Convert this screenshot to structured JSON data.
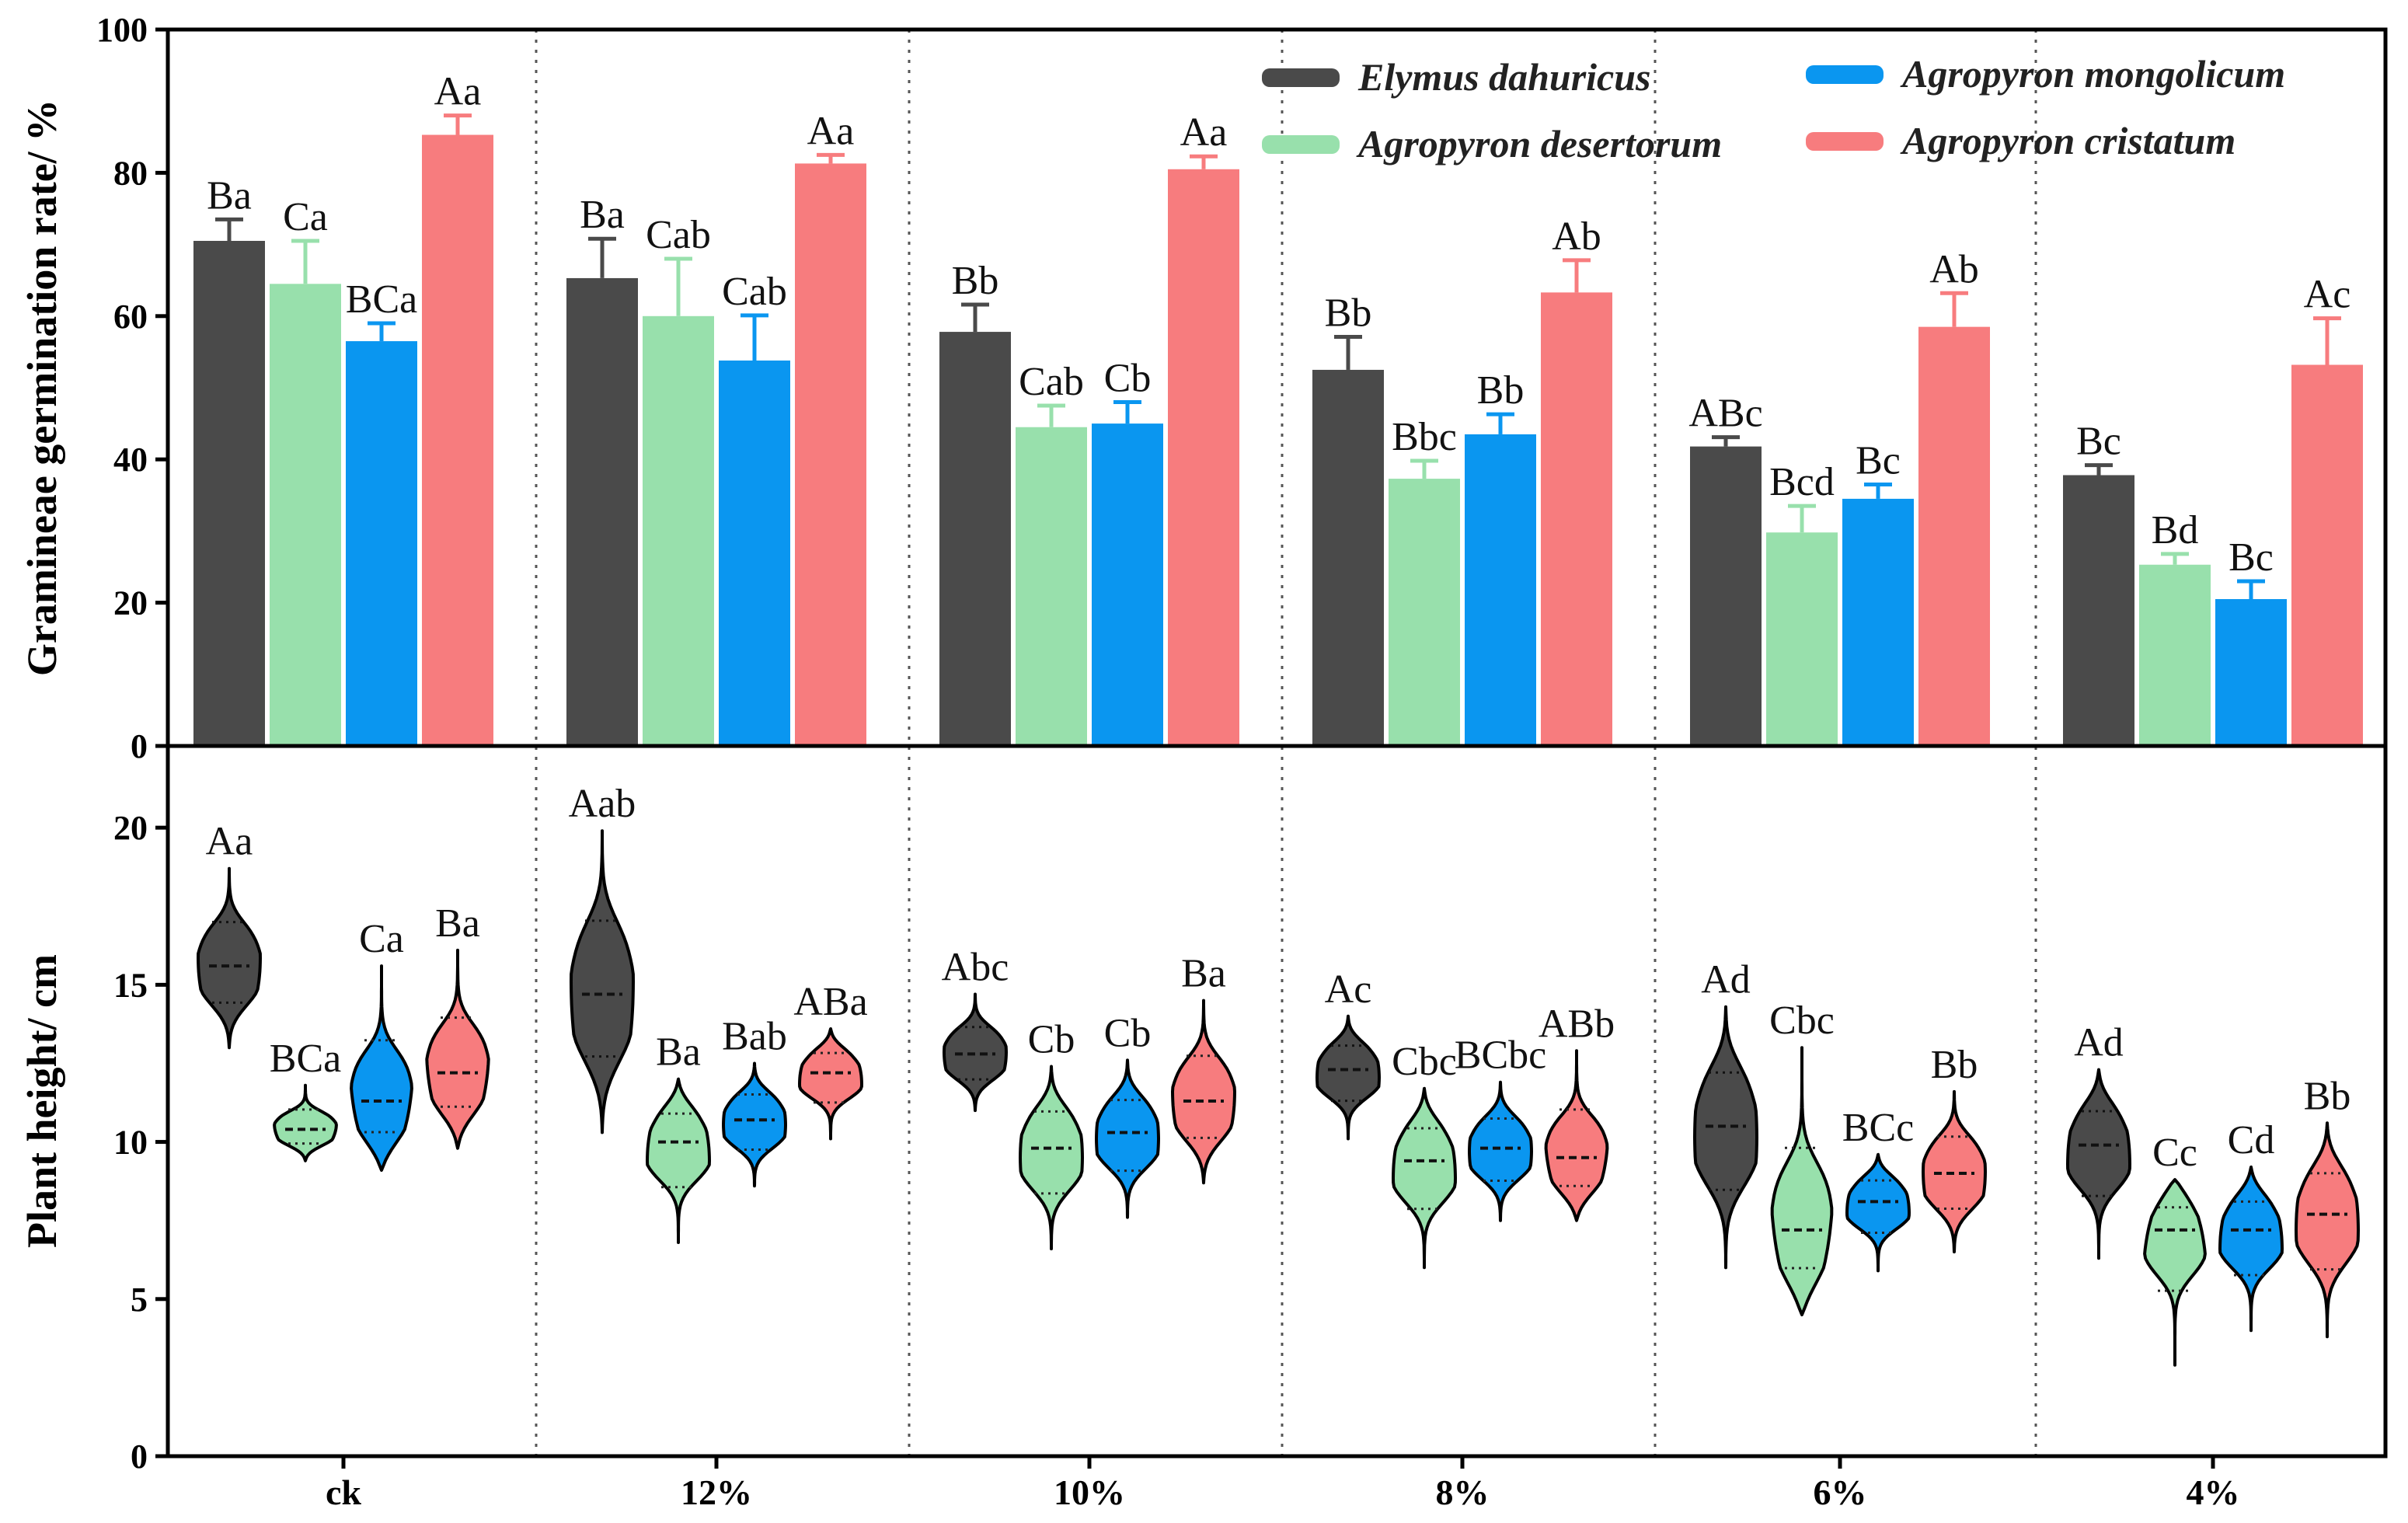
{
  "chart_data": [
    {
      "type": "bar",
      "ylabel": "Gramineae germination rate/ %",
      "ylim": [
        0,
        100
      ],
      "yticks": [
        0,
        20,
        40,
        60,
        80,
        100
      ],
      "categories": [
        "ck",
        "12%",
        "10%",
        "8%",
        "6%",
        "4%"
      ],
      "legend_position": "top-right",
      "series": [
        {
          "name": "Elymus dahuricus",
          "color": "#4a4a4a",
          "values": [
            70.5,
            65.3,
            57.8,
            52.5,
            41.8,
            37.8
          ],
          "errors": [
            3.0,
            5.5,
            3.8,
            4.6,
            1.3,
            1.4
          ],
          "letters": [
            "Ba",
            "Ba",
            "Bb",
            "Bb",
            "ABc",
            "Bc"
          ]
        },
        {
          "name": "Agropyron desertorum",
          "color": "#98e0ac",
          "values": [
            64.5,
            60.0,
            44.5,
            37.3,
            29.8,
            25.3
          ],
          "errors": [
            6.0,
            8.0,
            3.0,
            2.5,
            3.7,
            1.5
          ],
          "letters": [
            "Ca",
            "Cab",
            "Cab",
            "Bbc",
            "Bcd",
            "Bd"
          ]
        },
        {
          "name": "Agropyron mongolicum",
          "color": "#0a96f0",
          "values": [
            56.5,
            53.8,
            45.0,
            43.5,
            34.5,
            20.5
          ],
          "errors": [
            2.5,
            6.3,
            3.0,
            2.8,
            2.0,
            2.5
          ],
          "letters": [
            "BCa",
            "Cab",
            "Cb",
            "Bb",
            "Bc",
            "Bc"
          ]
        },
        {
          "name": "Agropyron cristatum",
          "color": "#f77c7e",
          "values": [
            85.3,
            81.3,
            80.5,
            63.3,
            58.5,
            53.2
          ],
          "errors": [
            2.7,
            1.2,
            1.8,
            4.5,
            4.7,
            6.5
          ],
          "letters": [
            "Aa",
            "Aa",
            "Aa",
            "Ab",
            "Ab",
            "Ac"
          ]
        }
      ]
    },
    {
      "type": "violin",
      "ylabel": "Plant height/ cm",
      "ylim": [
        0,
        20
      ],
      "yticks": [
        0,
        5,
        10,
        15,
        20
      ],
      "categories": [
        "ck",
        "12%",
        "10%",
        "8%",
        "6%",
        "4%"
      ],
      "series": [
        {
          "name": "Elymus dahuricus",
          "color": "#4a4a4a",
          "min": [
            13.0,
            10.3,
            11.0,
            10.1,
            6.0,
            6.3
          ],
          "max": [
            18.7,
            19.9,
            14.7,
            14.0,
            14.3,
            12.3
          ],
          "median": [
            15.6,
            14.7,
            12.8,
            12.3,
            10.5,
            9.9
          ],
          "letters": [
            "Aa",
            "Aab",
            "Abc",
            "Ac",
            "Ad",
            "Ad"
          ]
        },
        {
          "name": "Agropyron desertorum",
          "color": "#98e0ac",
          "min": [
            9.4,
            6.8,
            6.6,
            6.0,
            4.5,
            2.9
          ],
          "max": [
            11.8,
            12.0,
            12.4,
            11.7,
            13.0,
            8.8
          ],
          "median": [
            10.4,
            10.0,
            9.8,
            9.4,
            7.2,
            7.2
          ],
          "letters": [
            "BCa",
            "Ba",
            "Cb",
            "Cbc",
            "Cbc",
            "Cc"
          ]
        },
        {
          "name": "Agropyron mongolicum",
          "color": "#0a96f0",
          "min": [
            9.1,
            8.6,
            7.6,
            7.5,
            5.9,
            4.0
          ],
          "max": [
            15.6,
            12.5,
            12.6,
            11.9,
            9.6,
            9.2
          ],
          "median": [
            11.3,
            10.7,
            10.3,
            9.8,
            8.1,
            7.2
          ],
          "letters": [
            "Ca",
            "Bab",
            "Cb",
            "BCbc",
            "BCc",
            "Cd"
          ]
        },
        {
          "name": "Agropyron cristatum",
          "color": "#f77c7e",
          "min": [
            9.8,
            10.1,
            8.7,
            7.5,
            6.5,
            3.8
          ],
          "max": [
            16.1,
            13.6,
            14.5,
            12.9,
            11.6,
            10.6
          ],
          "median": [
            12.2,
            12.2,
            11.3,
            9.5,
            9.0,
            7.7
          ],
          "letters": [
            "Ba",
            "ABa",
            "Ba",
            "ABb",
            "Bb",
            "Bb"
          ]
        }
      ]
    }
  ]
}
